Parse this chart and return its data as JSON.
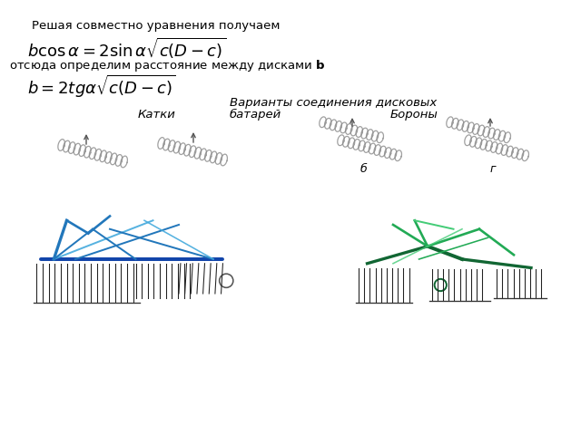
{
  "text1": "Решая совместно уравнения получаем",
  "formula1": "$b\\cos\\alpha = 2\\sin\\alpha\\sqrt{c(D-c)}$",
  "text2": "отсюда определим расстояние между дисками $\\mathbf{b}$",
  "formula2": "$b = 2tg\\alpha\\sqrt{c(D-c)}$",
  "title_center": "Варианты соединения дисковых",
  "title_center2": "батарей",
  "label_left": "Катки",
  "label_right": "Бороны",
  "label_b": "б",
  "label_g": "г",
  "background_color": "#ffffff",
  "text_color": "#000000",
  "fig_width": 6.4,
  "fig_height": 4.8,
  "dpi": 100
}
